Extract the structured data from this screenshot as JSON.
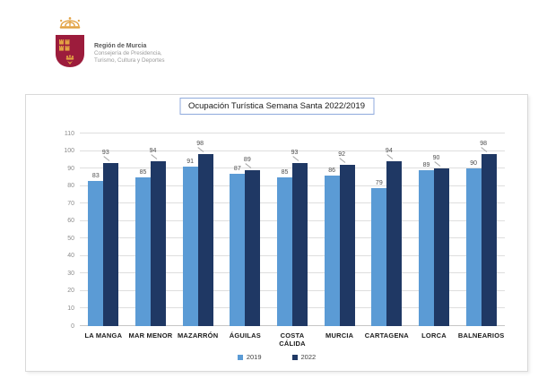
{
  "logo": {
    "title": "Región de Murcia",
    "subtitle_line1": "Consejería de Presidencia,",
    "subtitle_line2": "Turismo, Cultura y Deportes",
    "crown_color": "#e2a243",
    "shield_color": "#9c1c3c"
  },
  "chart_data": {
    "type": "bar",
    "title": "Ocupación Turística Semana Santa 2022/2019",
    "categories": [
      "LA MANGA",
      "MAR MENOR",
      "MAZARRÓN",
      "ÁGUILAS",
      "COSTA CÁLIDA",
      "MURCIA",
      "CARTAGENA",
      "LORCA",
      "BALNEARIOS"
    ],
    "series": [
      {
        "name": "2019",
        "color": "#5b9bd5",
        "values": [
          83,
          85,
          91,
          87,
          85,
          86,
          79,
          89,
          90
        ]
      },
      {
        "name": "2022",
        "color": "#1f3864",
        "values": [
          93,
          94,
          98,
          89,
          93,
          92,
          94,
          90,
          98
        ]
      }
    ],
    "xlabel": "",
    "ylabel": "",
    "ylim": [
      0,
      110
    ],
    "ytick_step": 10,
    "grid": true,
    "legend_position": "bottom",
    "gridline_color": "#dedede",
    "axis_label_color": "#8c8c8c",
    "value_label_color": "#4d4d4d",
    "title_border_color": "#8faadc"
  }
}
